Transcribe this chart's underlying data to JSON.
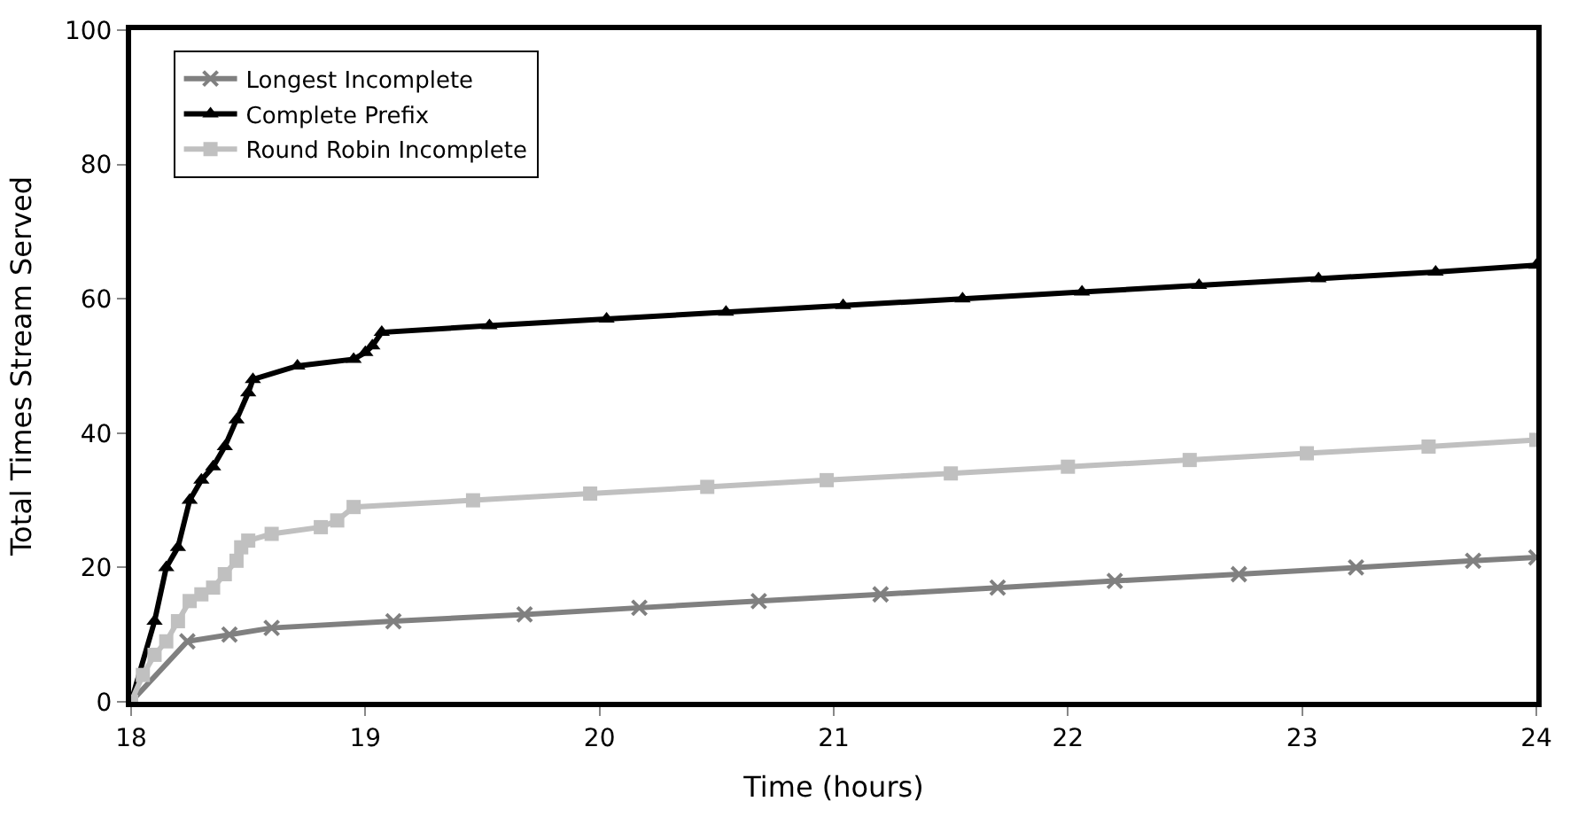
{
  "chart_data": {
    "type": "line",
    "xlabel": "Time (hours)",
    "ylabel": "Total Times Stream Served",
    "xlim": [
      18,
      24
    ],
    "xticks": [
      18,
      19,
      20,
      21,
      22,
      23,
      24
    ],
    "ylim": [
      0,
      100
    ],
    "yticks": [
      0,
      20,
      40,
      60,
      80,
      100
    ],
    "grid": false,
    "legend": "top left",
    "line_style": "solid",
    "series": [
      {
        "name": "Longest Incomplete",
        "color": "#808080",
        "marker": "cross",
        "x": [
          18.0,
          18.24,
          18.42,
          18.6,
          19.12,
          19.68,
          20.17,
          20.68,
          21.2,
          21.7,
          22.2,
          22.73,
          23.23,
          23.73,
          24.0
        ],
        "values": [
          0,
          9,
          10,
          11,
          12,
          13,
          14,
          15,
          16,
          17,
          18,
          19,
          20,
          21,
          21.5
        ]
      },
      {
        "name": "Complete Prefix",
        "color": "#000000",
        "marker": "triangle",
        "x": [
          18.0,
          18.1,
          18.15,
          18.2,
          18.25,
          18.3,
          18.35,
          18.4,
          18.45,
          18.5,
          18.52,
          18.71,
          18.95,
          19.0,
          19.03,
          19.07,
          19.53,
          20.03,
          20.54,
          21.04,
          21.55,
          22.06,
          22.56,
          23.07,
          23.57,
          24.0
        ],
        "values": [
          0,
          12,
          20,
          23,
          30,
          33,
          35,
          38,
          42,
          46,
          48,
          50,
          51,
          52,
          53,
          55,
          56,
          57,
          58,
          59,
          60,
          61,
          62,
          63,
          64,
          65
        ]
      },
      {
        "name": "Round Robin Incomplete",
        "color": "#c0c0c0",
        "marker": "square",
        "x": [
          18.0,
          18.05,
          18.1,
          18.15,
          18.2,
          18.25,
          18.3,
          18.35,
          18.4,
          18.45,
          18.47,
          18.5,
          18.6,
          18.81,
          18.88,
          18.95,
          19.46,
          19.96,
          20.46,
          20.97,
          21.5,
          22.0,
          22.52,
          23.02,
          23.54,
          24.0
        ],
        "values": [
          0,
          4,
          7,
          9,
          12,
          15,
          16,
          17,
          19,
          21,
          23,
          24,
          25,
          26,
          27,
          29,
          30,
          31,
          32,
          33,
          34,
          35,
          36,
          37,
          38,
          39
        ]
      }
    ]
  }
}
